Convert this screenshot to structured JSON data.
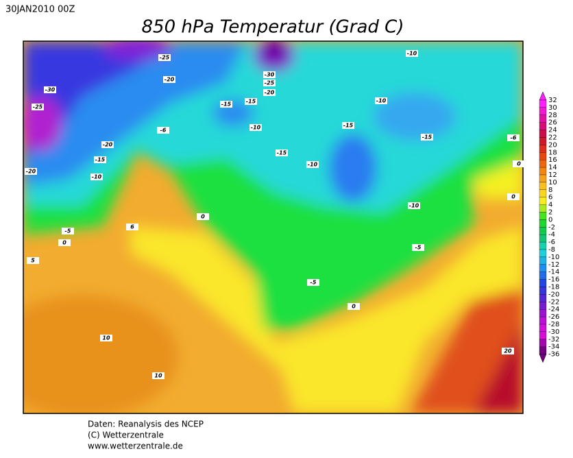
{
  "header": {
    "date": "30JAN2010 00Z",
    "title": "850 hPa Temperatur (Grad C)"
  },
  "map": {
    "contour_labels": [
      -25,
      -20,
      -30,
      -25,
      -15,
      -15,
      -30,
      -25,
      -20,
      -10,
      -10,
      -10,
      -15,
      -15,
      -6,
      -20,
      -15,
      -10,
      -20,
      -15,
      -10,
      -6,
      0,
      0,
      -10,
      -5,
      0,
      6,
      -5,
      0,
      5,
      -5,
      0,
      10,
      10,
      20
    ]
  },
  "colorbar": {
    "levels": [
      32,
      30,
      28,
      26,
      24,
      22,
      20,
      18,
      16,
      14,
      12,
      10,
      8,
      6,
      4,
      2,
      0,
      -2,
      -4,
      -6,
      -8,
      -10,
      -12,
      -14,
      -16,
      -18,
      -20,
      -22,
      -24,
      -26,
      -28,
      -30,
      -32,
      -34,
      -36
    ]
  },
  "footer": [
    "Daten: Reanalysis des NCEP",
    "(C) Wetterzentrale",
    "www.wetterzentrale.de"
  ]
}
